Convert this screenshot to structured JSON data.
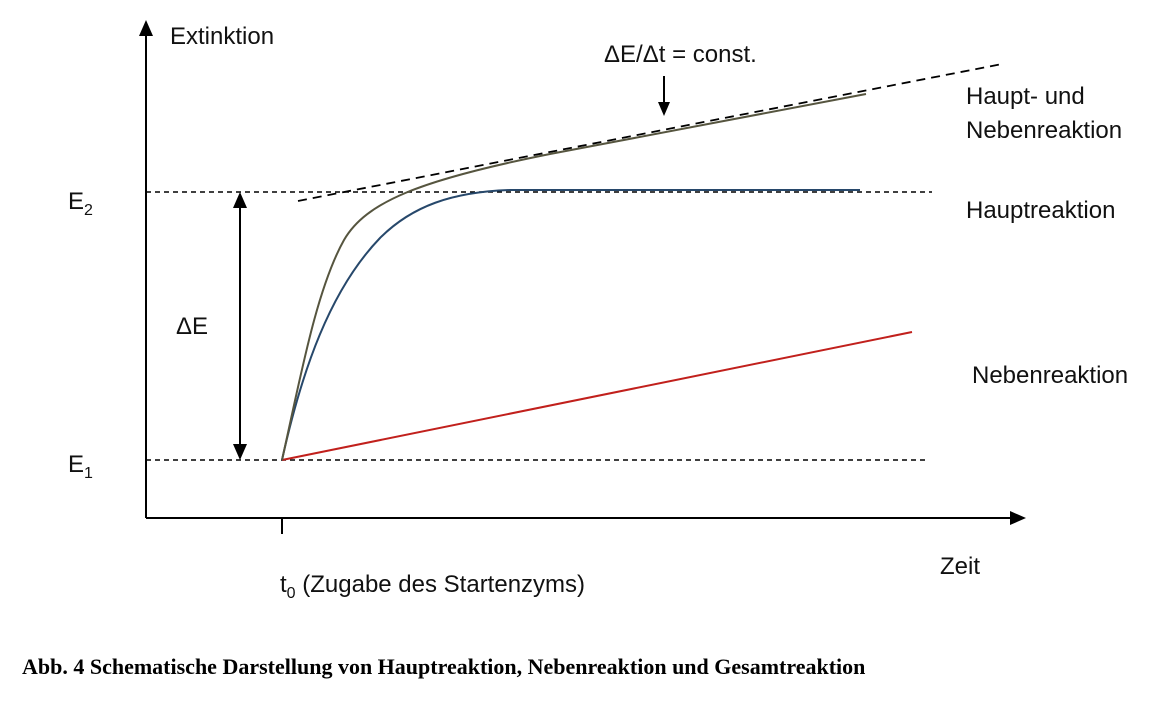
{
  "diagram": {
    "y_axis_label": "Extinktion",
    "x_axis_label": "Zeit",
    "level_high": {
      "main": "E",
      "sub": "2"
    },
    "level_low": {
      "main": "E",
      "sub": "1"
    },
    "delta_e_label": "ΔE",
    "slope_label": "ΔE/Δt = const.",
    "t0_label": {
      "main": "t",
      "sub": "0",
      "rest": " (Zugabe des Startenzyms)"
    },
    "curves": [
      {
        "id": "total",
        "label_line1": "Haupt- und",
        "label_line2": "Nebenreaktion",
        "color": "#56553f"
      },
      {
        "id": "main",
        "label": "Hauptreaktion",
        "color": "#27486b"
      },
      {
        "id": "side",
        "label": "Nebenreaktion",
        "color": "#c1201c"
      }
    ],
    "colors": {
      "axis": "#000000",
      "dashed": "#000000"
    }
  },
  "caption": "Abb. 4  Schematische Darstellung von Hauptreaktion, Nebenreaktion und Gesamtreaktion"
}
